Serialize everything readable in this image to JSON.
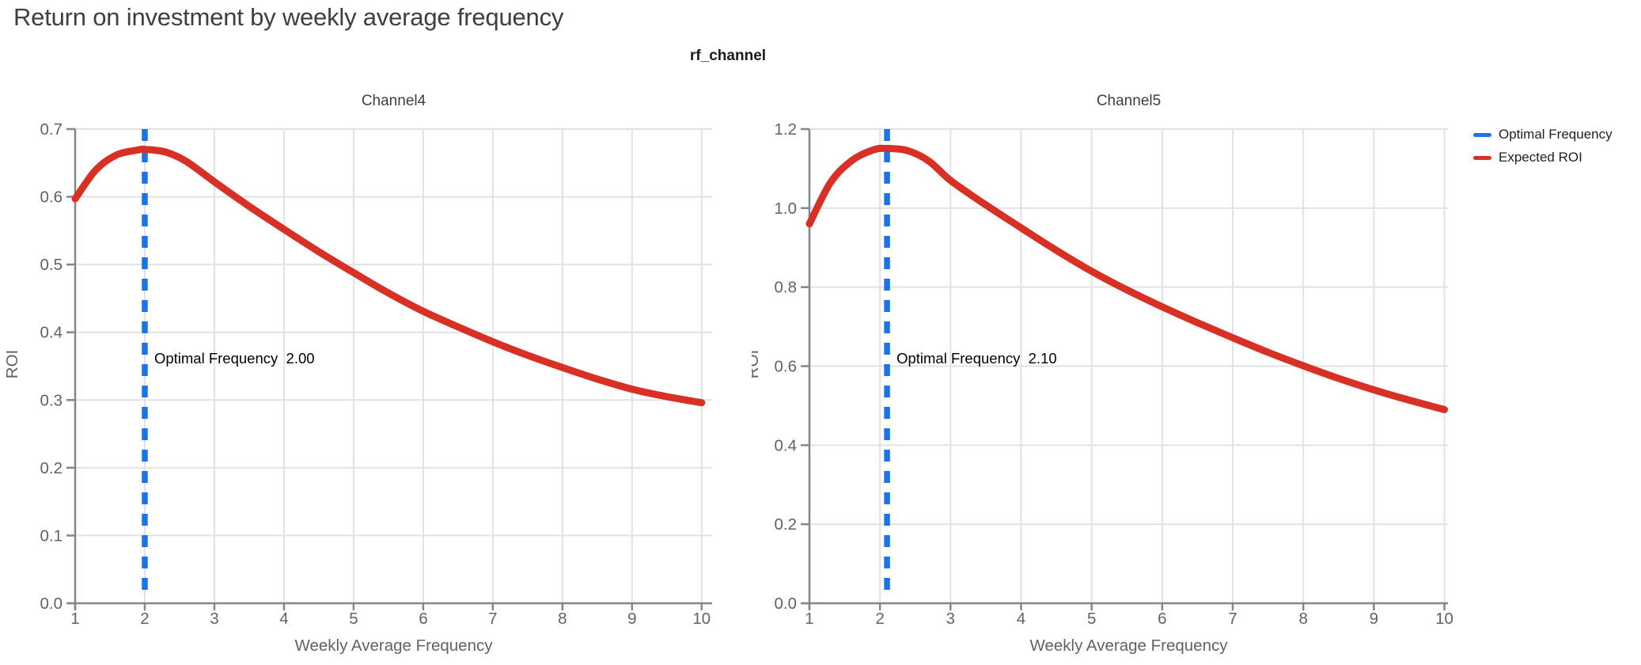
{
  "page": {
    "title": "Return on investment by weekly average frequency"
  },
  "figure": {
    "group_title": "rf_channel"
  },
  "legend": {
    "items": [
      {
        "label": "Optimal Frequency",
        "color": "#1a73e8"
      },
      {
        "label": "Expected ROI",
        "color": "#d93025"
      }
    ]
  },
  "theme": {
    "roi_curve_color": "#d93025",
    "optimal_line_color": "#1a73e8",
    "grid_color": "#e2e2e2",
    "axis_color": "#82878c",
    "tick_label_color": "#5f6368",
    "axis_title_color": "#5f6368",
    "panel_title_color": "#3c4043",
    "annotation_color": "#000000"
  },
  "chart_data": [
    {
      "type": "line",
      "title": "Channel4",
      "xlabel": "Weekly Average Frequency",
      "ylabel": "ROI",
      "xlim": [
        1,
        10.15
      ],
      "ylim": [
        0,
        0.7
      ],
      "xticks": [
        1,
        2,
        3,
        4,
        5,
        6,
        7,
        8,
        9,
        10
      ],
      "xtick_labels": [
        "1",
        "2",
        "3",
        "4",
        "5",
        "6",
        "7",
        "8",
        "9",
        "10"
      ],
      "yticks": [
        0,
        0.1,
        0.2,
        0.3,
        0.4,
        0.5,
        0.6,
        0.7
      ],
      "ytick_labels": [
        "0.0",
        "0.1",
        "0.2",
        "0.3",
        "0.4",
        "0.5",
        "0.6",
        "0.7"
      ],
      "grid": true,
      "optimal_frequency": 2.0,
      "annotation": {
        "label": "Optimal Frequency",
        "value": "2.00"
      },
      "series": [
        {
          "name": "Expected ROI",
          "x": [
            1,
            1.3,
            1.6,
            1.9,
            2,
            2.3,
            2.6,
            3,
            3.5,
            4,
            4.5,
            5,
            5.5,
            6,
            6.5,
            7,
            7.5,
            8,
            8.5,
            9,
            9.5,
            10
          ],
          "y": [
            0.597,
            0.64,
            0.662,
            0.669,
            0.67,
            0.666,
            0.652,
            0.622,
            0.586,
            0.552,
            0.519,
            0.488,
            0.458,
            0.431,
            0.408,
            0.386,
            0.366,
            0.348,
            0.331,
            0.316,
            0.305,
            0.296
          ]
        }
      ]
    },
    {
      "type": "line",
      "title": "Channel5",
      "xlabel": "Weekly Average Frequency",
      "ylabel": "ROI",
      "xlim": [
        1,
        10.05
      ],
      "ylim": [
        0,
        1.2
      ],
      "xticks": [
        1,
        2,
        3,
        4,
        5,
        6,
        7,
        8,
        9,
        10
      ],
      "xtick_labels": [
        "1",
        "2",
        "3",
        "4",
        "5",
        "6",
        "7",
        "8",
        "9",
        "10"
      ],
      "yticks": [
        0,
        0.2,
        0.4,
        0.6,
        0.8,
        1.0,
        1.2
      ],
      "ytick_labels": [
        "0.0",
        "0.2",
        "0.4",
        "0.6",
        "0.8",
        "1.0",
        "1.2"
      ],
      "grid": true,
      "optimal_frequency": 2.1,
      "annotation": {
        "label": "Optimal Frequency",
        "value": "2.10"
      },
      "series": [
        {
          "name": "Expected ROI",
          "x": [
            1,
            1.3,
            1.6,
            1.9,
            2.1,
            2.4,
            2.7,
            3,
            3.5,
            4,
            4.5,
            5,
            5.5,
            6,
            6.5,
            7,
            7.5,
            8,
            8.5,
            9,
            9.5,
            10
          ],
          "y": [
            0.96,
            1.065,
            1.12,
            1.147,
            1.151,
            1.145,
            1.118,
            1.07,
            1.008,
            0.95,
            0.893,
            0.84,
            0.793,
            0.75,
            0.71,
            0.672,
            0.635,
            0.601,
            0.569,
            0.54,
            0.514,
            0.49
          ]
        }
      ]
    }
  ]
}
